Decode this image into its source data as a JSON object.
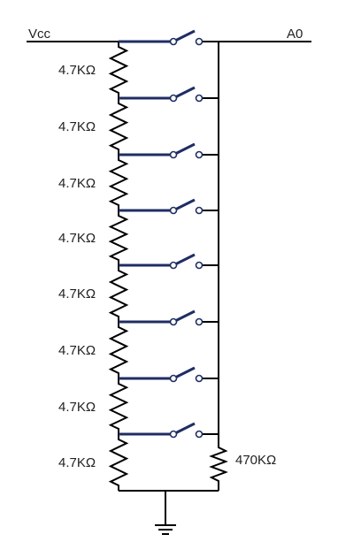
{
  "labels": {
    "vcc": "Vcc",
    "output": "A0",
    "pulldown": "470KΩ"
  },
  "ladder": {
    "resistor_values": [
      "4.7KΩ",
      "4.7KΩ",
      "4.7KΩ",
      "4.7KΩ",
      "4.7KΩ",
      "4.7KΩ",
      "4.7KΩ",
      "4.7KΩ"
    ],
    "switch_count": 8
  },
  "colors": {
    "wire": "#000000",
    "switch": "#1f2d63",
    "background": "#ffffff"
  },
  "symbols": [
    "resistor-icon",
    "switch-icon",
    "ground-icon"
  ]
}
